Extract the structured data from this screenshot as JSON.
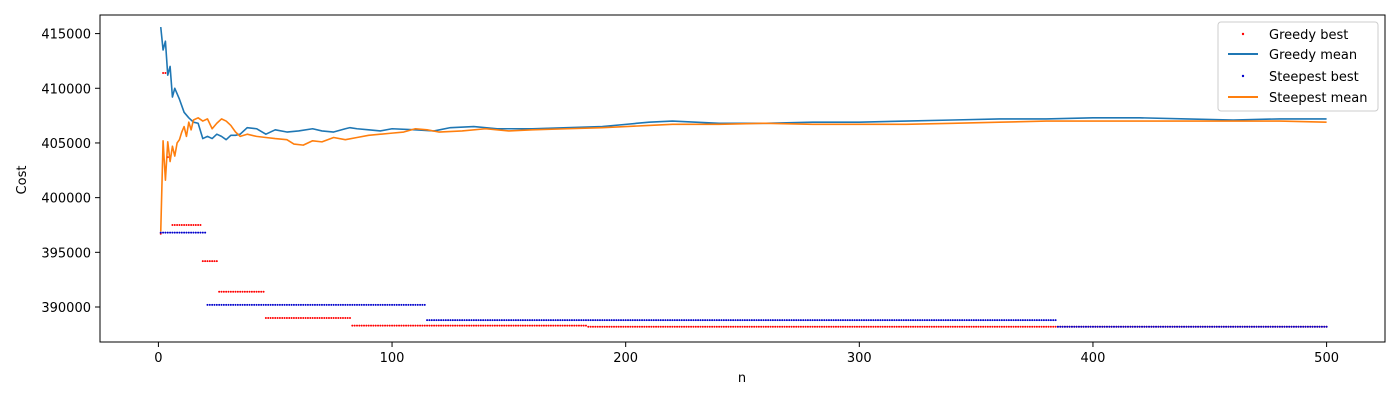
{
  "chart_data": {
    "type": "line",
    "title": "",
    "xlabel": "n",
    "ylabel": "Cost",
    "xlim": [
      -25,
      525
    ],
    "ylim": [
      386800,
      416700
    ],
    "xticks": [
      0,
      100,
      200,
      300,
      400,
      500
    ],
    "yticks": [
      390000,
      395000,
      400000,
      405000,
      410000,
      415000
    ],
    "xtick_labels": [
      "0",
      "100",
      "200",
      "300",
      "400",
      "500"
    ],
    "ytick_labels": [
      "390000",
      "395000",
      "400000",
      "405000",
      "410000",
      "415000"
    ],
    "legend_position": "top-right",
    "series": [
      {
        "name": "Greedy best",
        "style": "points",
        "color": "#ff0000",
        "steps": [
          {
            "from": 1,
            "to": 1,
            "value": 396700
          },
          {
            "from": 2,
            "to": 3,
            "value": 411400
          },
          {
            "from": 4,
            "to": 5,
            "value": 403700
          },
          {
            "from": 6,
            "to": 18,
            "value": 397500
          },
          {
            "from": 19,
            "to": 25,
            "value": 394200
          },
          {
            "from": 26,
            "to": 45,
            "value": 391400
          },
          {
            "from": 46,
            "to": 82,
            "value": 389000
          },
          {
            "from": 83,
            "to": 183,
            "value": 388300
          },
          {
            "from": 184,
            "to": 500,
            "value": 388200
          }
        ]
      },
      {
        "name": "Greedy mean",
        "style": "line",
        "color": "#1f77b4",
        "points": [
          [
            1,
            415600
          ],
          [
            2,
            413500
          ],
          [
            3,
            414300
          ],
          [
            4,
            411200
          ],
          [
            5,
            412000
          ],
          [
            6,
            409200
          ],
          [
            7,
            410000
          ],
          [
            9,
            409000
          ],
          [
            11,
            407800
          ],
          [
            13,
            407300
          ],
          [
            15,
            406900
          ],
          [
            17,
            406800
          ],
          [
            19,
            405400
          ],
          [
            21,
            405600
          ],
          [
            23,
            405400
          ],
          [
            25,
            405800
          ],
          [
            27,
            405600
          ],
          [
            29,
            405300
          ],
          [
            31,
            405700
          ],
          [
            33,
            405700
          ],
          [
            35,
            405800
          ],
          [
            38,
            406400
          ],
          [
            42,
            406300
          ],
          [
            46,
            405800
          ],
          [
            50,
            406200
          ],
          [
            55,
            406000
          ],
          [
            60,
            406100
          ],
          [
            66,
            406300
          ],
          [
            70,
            406100
          ],
          [
            75,
            406000
          ],
          [
            80,
            406300
          ],
          [
            82,
            406400
          ],
          [
            85,
            406300
          ],
          [
            90,
            406200
          ],
          [
            95,
            406100
          ],
          [
            100,
            406300
          ],
          [
            110,
            406200
          ],
          [
            118,
            406100
          ],
          [
            125,
            406400
          ],
          [
            135,
            406500
          ],
          [
            145,
            406300
          ],
          [
            160,
            406300
          ],
          [
            175,
            406400
          ],
          [
            190,
            406500
          ],
          [
            200,
            406700
          ],
          [
            210,
            406900
          ],
          [
            220,
            407000
          ],
          [
            230,
            406900
          ],
          [
            240,
            406800
          ],
          [
            250,
            406800
          ],
          [
            260,
            406800
          ],
          [
            280,
            406900
          ],
          [
            300,
            406900
          ],
          [
            320,
            407000
          ],
          [
            340,
            407100
          ],
          [
            360,
            407200
          ],
          [
            380,
            407200
          ],
          [
            400,
            407300
          ],
          [
            420,
            407300
          ],
          [
            440,
            407200
          ],
          [
            460,
            407100
          ],
          [
            480,
            407200
          ],
          [
            500,
            407200
          ]
        ]
      },
      {
        "name": "Steepest best",
        "style": "points",
        "color": "#0000cc",
        "steps": [
          {
            "from": 1,
            "to": 20,
            "value": 396800
          },
          {
            "from": 21,
            "to": 114,
            "value": 390200
          },
          {
            "from": 115,
            "to": 384,
            "value": 388800
          },
          {
            "from": 385,
            "to": 500,
            "value": 388200
          }
        ]
      },
      {
        "name": "Steepest mean",
        "style": "line",
        "color": "#ff7f0e",
        "points": [
          [
            1,
            396900
          ],
          [
            2,
            405200
          ],
          [
            3,
            401600
          ],
          [
            4,
            405100
          ],
          [
            5,
            403300
          ],
          [
            6,
            404700
          ],
          [
            7,
            403800
          ],
          [
            8,
            405000
          ],
          [
            9,
            405300
          ],
          [
            10,
            406000
          ],
          [
            11,
            406500
          ],
          [
            12,
            405600
          ],
          [
            13,
            406900
          ],
          [
            14,
            406200
          ],
          [
            15,
            407100
          ],
          [
            17,
            407300
          ],
          [
            19,
            407000
          ],
          [
            21,
            407200
          ],
          [
            23,
            406300
          ],
          [
            25,
            406800
          ],
          [
            27,
            407200
          ],
          [
            29,
            407000
          ],
          [
            31,
            406600
          ],
          [
            33,
            406000
          ],
          [
            35,
            405600
          ],
          [
            38,
            405800
          ],
          [
            42,
            405600
          ],
          [
            46,
            405500
          ],
          [
            50,
            405400
          ],
          [
            55,
            405300
          ],
          [
            58,
            404900
          ],
          [
            62,
            404800
          ],
          [
            66,
            405200
          ],
          [
            70,
            405100
          ],
          [
            75,
            405500
          ],
          [
            80,
            405300
          ],
          [
            85,
            405500
          ],
          [
            90,
            405700
          ],
          [
            95,
            405800
          ],
          [
            100,
            405900
          ],
          [
            105,
            406000
          ],
          [
            110,
            406300
          ],
          [
            115,
            406200
          ],
          [
            120,
            406000
          ],
          [
            130,
            406100
          ],
          [
            140,
            406300
          ],
          [
            150,
            406100
          ],
          [
            160,
            406200
          ],
          [
            175,
            406300
          ],
          [
            190,
            406400
          ],
          [
            200,
            406500
          ],
          [
            210,
            406600
          ],
          [
            220,
            406700
          ],
          [
            240,
            406700
          ],
          [
            260,
            406800
          ],
          [
            280,
            406700
          ],
          [
            300,
            406700
          ],
          [
            320,
            406700
          ],
          [
            340,
            406800
          ],
          [
            360,
            406900
          ],
          [
            380,
            407000
          ],
          [
            400,
            407000
          ],
          [
            420,
            407000
          ],
          [
            440,
            407000
          ],
          [
            460,
            407000
          ],
          [
            480,
            407000
          ],
          [
            500,
            406900
          ]
        ]
      }
    ]
  }
}
